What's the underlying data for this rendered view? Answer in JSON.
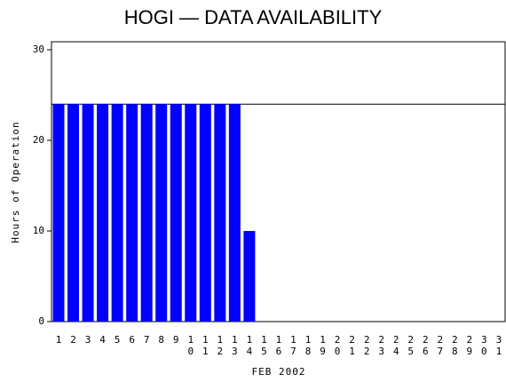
{
  "chart_data": {
    "type": "bar",
    "title": "HOGI — DATA AVAILABILITY",
    "x_label": "FEB 2002",
    "y_label": "Hours of Operation",
    "categories": [
      "1",
      "2",
      "3",
      "4",
      "5",
      "6",
      "7",
      "8",
      "9",
      "10",
      "11",
      "12",
      "13",
      "14",
      "15",
      "16",
      "17",
      "18",
      "19",
      "20",
      "21",
      "22",
      "23",
      "24",
      "25",
      "26",
      "27",
      "28",
      "29",
      "30",
      "31"
    ],
    "values": [
      24,
      24,
      24,
      24,
      24,
      24,
      24,
      24,
      24,
      24,
      24,
      24,
      24,
      10,
      0,
      0,
      0,
      0,
      0,
      0,
      0,
      0,
      0,
      0,
      0,
      0,
      0,
      0,
      0,
      0,
      0
    ],
    "color": "#0000ff",
    "reference_line": 24,
    "ylim": [
      0,
      30
    ],
    "yticks": [
      0,
      10,
      20,
      30
    ]
  }
}
